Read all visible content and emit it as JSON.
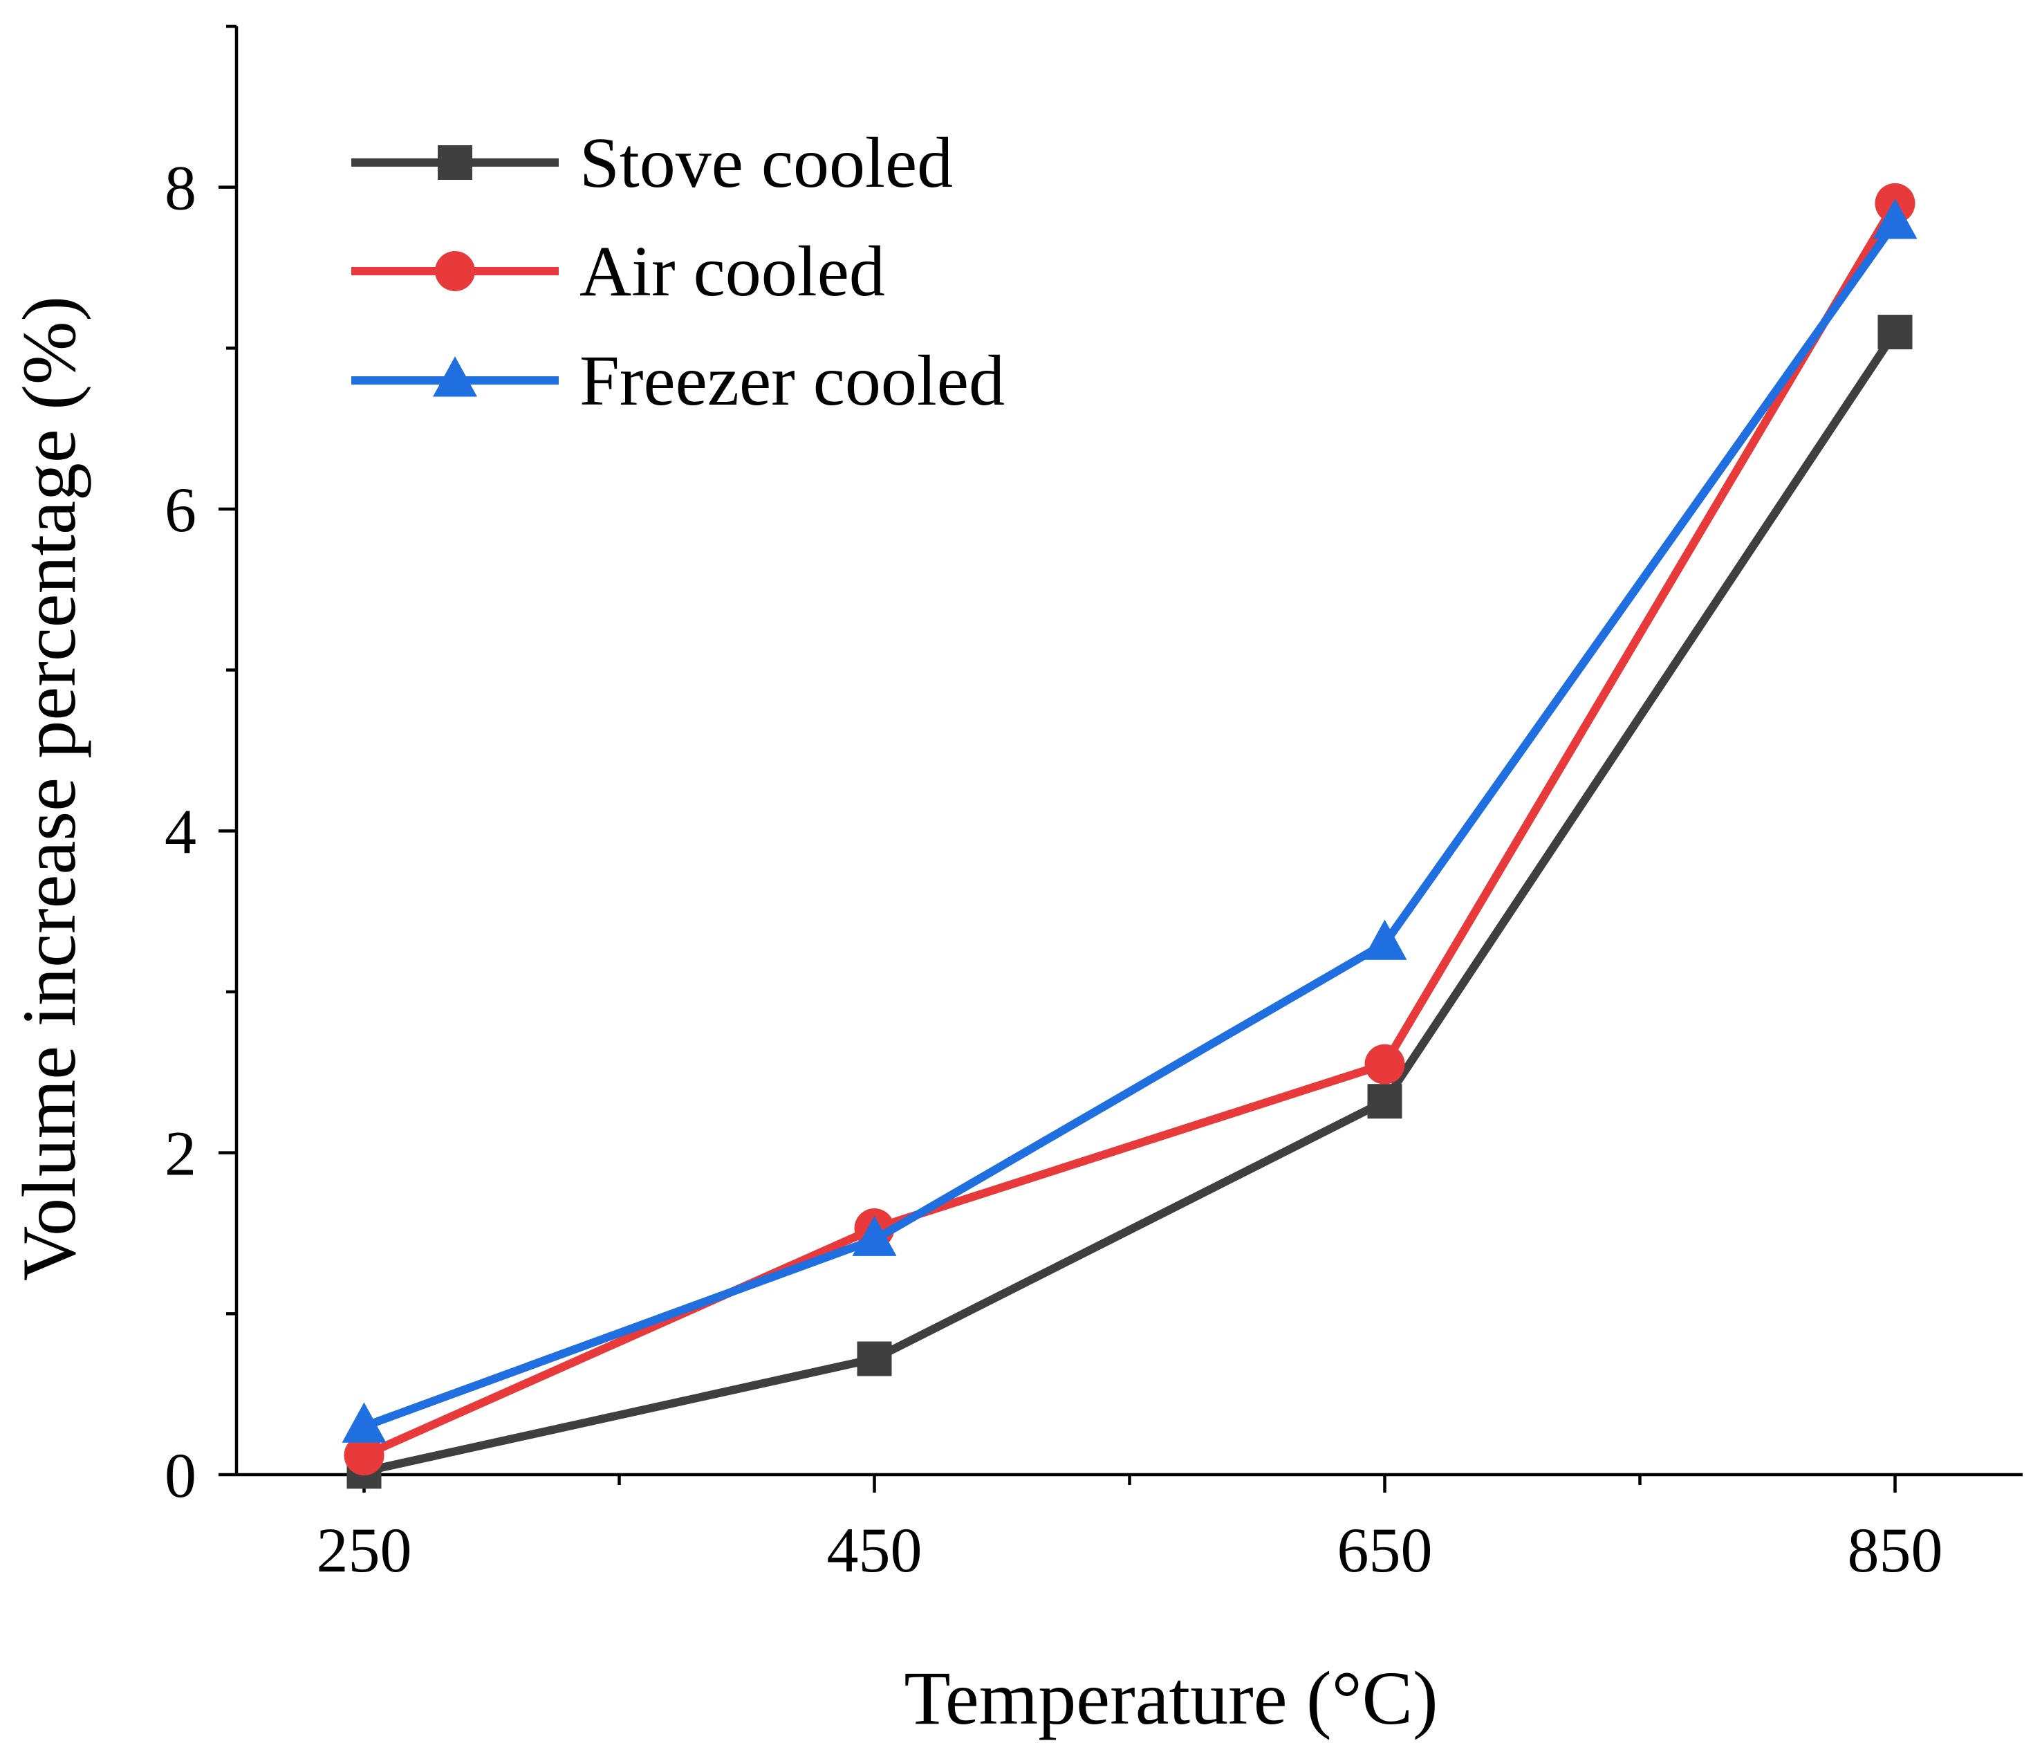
{
  "chart_data": {
    "type": "line",
    "title": "",
    "xlabel": "Temperature (°C)",
    "ylabel": "Volume increase percentage (%)",
    "x": [
      250,
      450,
      650,
      850
    ],
    "x_ticks": [
      "250",
      "450",
      "650",
      "850"
    ],
    "y_ticks": [
      "0",
      "2",
      "4",
      "6",
      "8"
    ],
    "xlim": [
      200,
      900
    ],
    "ylim": [
      0,
      9
    ],
    "grid": false,
    "legend_position": "top-left",
    "series": [
      {
        "name": "Stove cooled",
        "values": [
          0.02,
          0.72,
          2.32,
          7.1
        ],
        "color": "#3f3f3f",
        "marker": "square"
      },
      {
        "name": "Air cooled",
        "values": [
          0.12,
          1.53,
          2.55,
          7.9
        ],
        "color": "#e8393b",
        "marker": "circle"
      },
      {
        "name": "Freezer cooled",
        "values": [
          0.3,
          1.46,
          3.3,
          7.78
        ],
        "color": "#1f6fe0",
        "marker": "triangle"
      }
    ]
  }
}
